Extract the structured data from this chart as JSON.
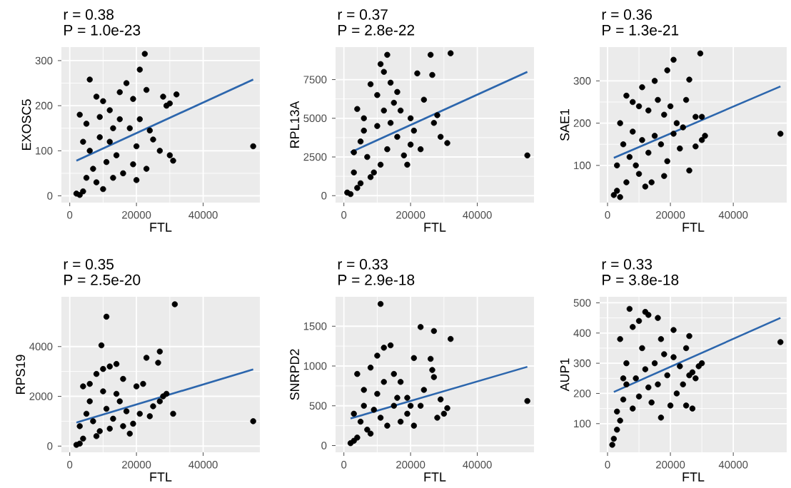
{
  "chart_data": [
    {
      "type": "scatter",
      "title": "r = 0.38",
      "subtitle": "P = 1.0e-23",
      "xlabel": "FTL",
      "ylabel": "EXOSC5",
      "xlim": [
        -2500,
        57000
      ],
      "ylim": [
        -15,
        330
      ],
      "xticks": [
        0,
        20000,
        40000
      ],
      "yticks": [
        0,
        100,
        200,
        300
      ],
      "grid": true,
      "series": [
        {
          "type": "scatter",
          "marker": "circle",
          "color": "#000000",
          "x": [
            22500,
            21000,
            6000,
            23000,
            28000,
            32000,
            30000,
            29000,
            55000,
            30000,
            31000,
            25000,
            27000,
            23000,
            20000,
            2000,
            3000,
            4000,
            3000,
            5000,
            8000,
            10000,
            12000,
            15000,
            17000,
            19000,
            8000,
            10000,
            13000,
            16000,
            6000,
            9000,
            12000,
            14000,
            18000,
            20000,
            7000,
            11000,
            15000,
            4000,
            5000,
            21000,
            24000,
            19000,
            9000,
            13000
          ],
          "values": [
            315,
            280,
            258,
            235,
            220,
            225,
            205,
            200,
            110,
            90,
            78,
            125,
            100,
            60,
            35,
            5,
            2,
            10,
            180,
            160,
            220,
            210,
            190,
            230,
            250,
            215,
            30,
            15,
            40,
            50,
            100,
            130,
            120,
            90,
            150,
            110,
            60,
            75,
            170,
            120,
            40,
            170,
            145,
            70,
            175,
            150
          ]
        },
        {
          "type": "line",
          "color": "#2c66ad",
          "x": [
            2000,
            55000
          ],
          "values": [
            78,
            258
          ]
        }
      ]
    },
    {
      "type": "scatter",
      "title": "r = 0.37",
      "subtitle": "P = 2.8e-22",
      "xlabel": "FTL",
      "ylabel": "RPL13A",
      "xlim": [
        -2500,
        57000
      ],
      "ylim": [
        -450,
        9600
      ],
      "xticks": [
        0,
        20000,
        40000
      ],
      "yticks": [
        0,
        2500,
        5000,
        7500
      ],
      "grid": true,
      "series": [
        {
          "type": "scatter",
          "marker": "circle",
          "color": "#000000",
          "x": [
            13000,
            26000,
            32000,
            22000,
            26500,
            11000,
            12000,
            55000,
            29000,
            31000,
            23000,
            19000,
            28000,
            24000,
            27000,
            1000,
            2000,
            4000,
            3000,
            4000,
            6000,
            8000,
            10000,
            14000,
            15000,
            17000,
            20000,
            21000,
            5000,
            7000,
            9000,
            11000,
            13000,
            16000,
            18000,
            6000,
            10000,
            12000,
            14000,
            8000,
            3000,
            5000,
            16000,
            20000
          ],
          "values": [
            9100,
            9100,
            9200,
            7900,
            7800,
            8500,
            8000,
            2600,
            3800,
            3400,
            3000,
            2000,
            5200,
            6200,
            4700,
            200,
            100,
            500,
            1500,
            5600,
            5000,
            7200,
            6500,
            7300,
            6000,
            5500,
            5000,
            4200,
            3500,
            2500,
            1500,
            2000,
            3000,
            3800,
            2600,
            4200,
            4500,
            5500,
            4700,
            1200,
            2800,
            800,
            6700,
            3300
          ]
        },
        {
          "type": "line",
          "color": "#2c66ad",
          "x": [
            2000,
            55000
          ],
          "values": [
            2800,
            8000
          ]
        }
      ]
    },
    {
      "type": "scatter",
      "title": "r = 0.36",
      "subtitle": "P = 1.3e-21",
      "xlabel": "FTL",
      "ylabel": "SAE1",
      "xlim": [
        -2500,
        57000
      ],
      "ylim": [
        12,
        380
      ],
      "xticks": [
        0,
        20000,
        40000
      ],
      "yticks": [
        100,
        200,
        300
      ],
      "grid": true,
      "series": [
        {
          "type": "scatter",
          "marker": "circle",
          "color": "#000000",
          "x": [
            29500,
            21000,
            19000,
            26000,
            15000,
            11000,
            55000,
            26000,
            28000,
            30000,
            31000,
            28000,
            30000,
            25000,
            20000,
            2000,
            3000,
            4000,
            6000,
            12000,
            14000,
            18000,
            4000,
            6000,
            8000,
            10000,
            13000,
            16000,
            18000,
            22000,
            24000,
            5000,
            7000,
            9000,
            11000,
            13000,
            15000,
            17000,
            19000,
            21000,
            3000,
            8000,
            10000,
            23000
          ],
          "values": [
            365,
            350,
            325,
            303,
            300,
            285,
            175,
            88,
            215,
            215,
            170,
            145,
            160,
            255,
            240,
            30,
            40,
            25,
            60,
            50,
            60,
            75,
            200,
            265,
            250,
            240,
            230,
            255,
            220,
            200,
            190,
            150,
            120,
            100,
            160,
            130,
            170,
            150,
            110,
            175,
            100,
            180,
            80,
            140
          ]
        },
        {
          "type": "line",
          "color": "#2c66ad",
          "x": [
            2000,
            55000
          ],
          "values": [
            118,
            287
          ]
        }
      ]
    },
    {
      "type": "scatter",
      "title": "r = 0.35",
      "subtitle": "P = 2.5e-20",
      "xlabel": "FTL",
      "ylabel": "RPS19",
      "xlim": [
        -2500,
        57000
      ],
      "ylim": [
        -250,
        6000
      ],
      "xticks": [
        0,
        20000,
        40000
      ],
      "yticks": [
        0,
        2000,
        4000
      ],
      "grid": true,
      "series": [
        {
          "type": "scatter",
          "marker": "circle",
          "color": "#000000",
          "x": [
            31500,
            11000,
            9500,
            27000,
            23000,
            26500,
            55000,
            31000,
            29000,
            27000,
            25000,
            22000,
            20000,
            18000,
            2000,
            3000,
            4000,
            4000,
            6000,
            8000,
            10000,
            12000,
            14000,
            16000,
            5000,
            7000,
            9000,
            11000,
            13000,
            15000,
            17000,
            19000,
            21000,
            6000,
            10000,
            14000,
            8000,
            12000,
            24000,
            28000,
            16000,
            3000
          ],
          "values": [
            5700,
            5200,
            4050,
            3800,
            3550,
            3350,
            1000,
            1300,
            2100,
            1800,
            1600,
            2500,
            2400,
            500,
            50,
            100,
            300,
            2400,
            2500,
            2900,
            3100,
            3200,
            3300,
            2700,
            1300,
            1000,
            600,
            1500,
            1100,
            1800,
            1400,
            900,
            1300,
            1800,
            2200,
            2100,
            400,
            700,
            1200,
            2000,
            800,
            800
          ]
        },
        {
          "type": "line",
          "color": "#2c66ad",
          "x": [
            2000,
            55000
          ],
          "values": [
            950,
            3080
          ]
        }
      ]
    },
    {
      "type": "scatter",
      "title": "r = 0.33",
      "subtitle": "P = 2.9e-18",
      "xlabel": "FTL",
      "ylabel": "SNRPD2",
      "xlim": [
        -2500,
        57000
      ],
      "ylim": [
        -85,
        1870
      ],
      "xticks": [
        0,
        20000,
        40000
      ],
      "yticks": [
        0,
        500,
        1000,
        1500
      ],
      "grid": true,
      "series": [
        {
          "type": "scatter",
          "marker": "circle",
          "color": "#000000",
          "x": [
            11000,
            23000,
            27000,
            32000,
            14000,
            12000,
            21000,
            26000,
            26500,
            27000,
            55000,
            31000,
            30000,
            28000,
            29000,
            10000,
            4000,
            6000,
            8000,
            15000,
            17000,
            19000,
            2000,
            3000,
            4000,
            5000,
            7000,
            9000,
            11000,
            13000,
            15000,
            17000,
            19000,
            21000,
            23000,
            6000,
            10000,
            12000,
            16000,
            8000,
            3000,
            24000,
            20000
          ],
          "values": [
            1780,
            1490,
            1440,
            1340,
            1260,
            1230,
            1100,
            1090,
            950,
            860,
            560,
            470,
            400,
            350,
            580,
            1130,
            900,
            700,
            980,
            900,
            800,
            600,
            30,
            60,
            100,
            300,
            200,
            450,
            350,
            250,
            500,
            300,
            400,
            250,
            500,
            500,
            650,
            800,
            600,
            150,
            400,
            700,
            500
          ]
        },
        {
          "type": "line",
          "color": "#2c66ad",
          "x": [
            2000,
            55000
          ],
          "values": [
            340,
            990
          ]
        }
      ]
    },
    {
      "type": "scatter",
      "title": "r = 0.33",
      "subtitle": "P = 3.8e-18",
      "xlabel": "FTL",
      "ylabel": "AUP1",
      "xlim": [
        -2500,
        57000
      ],
      "ylim": [
        5,
        520
      ],
      "xticks": [
        0,
        20000,
        40000
      ],
      "yticks": [
        100,
        200,
        300,
        400,
        500
      ],
      "grid": true,
      "series": [
        {
          "type": "scatter",
          "marker": "circle",
          "color": "#000000",
          "x": [
            7000,
            12000,
            13000,
            16000,
            10000,
            26000,
            21000,
            55000,
            30000,
            29000,
            27000,
            28000,
            26000,
            23000,
            25000,
            24000,
            22000,
            20000,
            17000,
            25000,
            27000,
            1500,
            2000,
            3000,
            4000,
            3000,
            5000,
            4000,
            6000,
            8000,
            9000,
            11000,
            13000,
            15000,
            17000,
            19000,
            6000,
            8000,
            10000,
            12000,
            14000,
            16000,
            18000,
            21000,
            5000
          ],
          "values": [
            480,
            470,
            460,
            450,
            440,
            390,
            410,
            370,
            300,
            290,
            270,
            250,
            260,
            290,
            350,
            230,
            200,
            160,
            120,
            160,
            150,
            30,
            50,
            80,
            110,
            140,
            180,
            380,
            300,
            420,
            250,
            350,
            220,
            300,
            380,
            260,
            230,
            150,
            190,
            280,
            170,
            230,
            330,
            320,
            250
          ]
        },
        {
          "type": "line",
          "color": "#2c66ad",
          "x": [
            2000,
            55000
          ],
          "values": [
            205,
            450
          ]
        }
      ]
    }
  ]
}
